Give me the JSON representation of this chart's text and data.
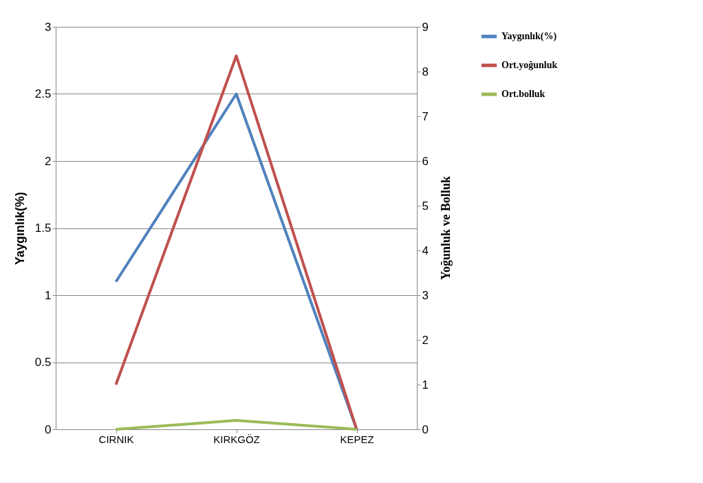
{
  "chart_data": {
    "type": "line",
    "categories": [
      "CIRNIK",
      "KIRKGÖZ",
      "KEPEZ"
    ],
    "ylabel": "Yaygınlık(%)",
    "y2label": "Yoğunluk ve  Bolluk",
    "ylim": [
      0,
      3
    ],
    "yticks": [
      0,
      0.5,
      1,
      1.5,
      2,
      2.5,
      3
    ],
    "y2lim": [
      0,
      9
    ],
    "y2ticks": [
      0,
      1,
      2,
      3,
      4,
      5,
      6,
      7,
      8,
      9
    ],
    "grid": "y",
    "legend": "top right",
    "marker": "none",
    "line_style": "solid",
    "series": [
      {
        "name": "Yaygınlık(%)",
        "color": "#4f81bd",
        "values": [
          1.1,
          2.5,
          0
        ]
      },
      {
        "name": "Ort.yoğunluk",
        "color": "#c0504d",
        "values": [
          1.0,
          8.35,
          0
        ],
        "axis": "y2"
      },
      {
        "name": "Ort.bolluk",
        "color": "#9bbb59",
        "values": [
          0.0,
          0.2,
          0
        ],
        "axis": "y2"
      }
    ]
  }
}
